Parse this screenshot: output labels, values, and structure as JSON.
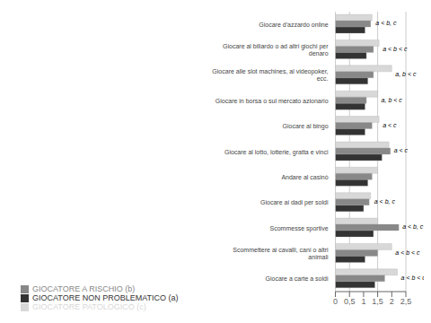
{
  "chart_data": {
    "type": "bar",
    "orientation": "horizontal",
    "categories": [
      "Giocare d'azzardo online",
      "Giocare al biliardo o ad altri giochi per\ndenaro",
      "Giocare alle slot machines, al videopoker,\necc.",
      "Giocare in borsa o sul mercato azionario",
      "Giocare al bingo",
      "Giocare al lotto, lotterie, gratta e vinci",
      "Andare al casinò",
      "Giocare ai dadi per soldi",
      "Scommesse sportive",
      "Scommettere ai cavalli, cani o altri\nanimali",
      "Giocare a carte a soldi"
    ],
    "series": [
      {
        "name": "GIOCATORE PATOLOGICO (c)",
        "color": "#d8d8d8",
        "values": [
          1.3,
          1.55,
          2.0,
          1.5,
          1.55,
          1.9,
          1.5,
          1.25,
          1.5,
          2.0,
          2.2
        ]
      },
      {
        "name": "GIOCATORE A RISCHIO (b)",
        "color": "#888888",
        "values": [
          1.25,
          1.35,
          1.35,
          1.1,
          1.3,
          1.95,
          1.3,
          1.2,
          2.25,
          1.5,
          1.75
        ]
      },
      {
        "name": "GIOCATORE NON PROBLEMATICO (a)",
        "color": "#333333",
        "values": [
          1.05,
          1.1,
          1.15,
          1.05,
          1.05,
          1.65,
          1.15,
          1.0,
          1.35,
          1.05,
          1.4
        ]
      }
    ],
    "annotations": [
      "a < b, c",
      "a < b < c",
      "a, b < c",
      "a, b < c",
      "a < c",
      "a < c",
      null,
      "a < b, c",
      "a < b, c",
      "a < b < c",
      "a < b < c"
    ],
    "xlim": [
      0,
      2.5
    ],
    "xticks": [
      0,
      {
        "value": 0.5,
        "label": "0,5"
      },
      1,
      {
        "value": 1.5,
        "label": "1,5"
      },
      2,
      {
        "value": 2.5,
        "label": "2,5"
      }
    ],
    "grid": true,
    "legend": "lower left"
  }
}
